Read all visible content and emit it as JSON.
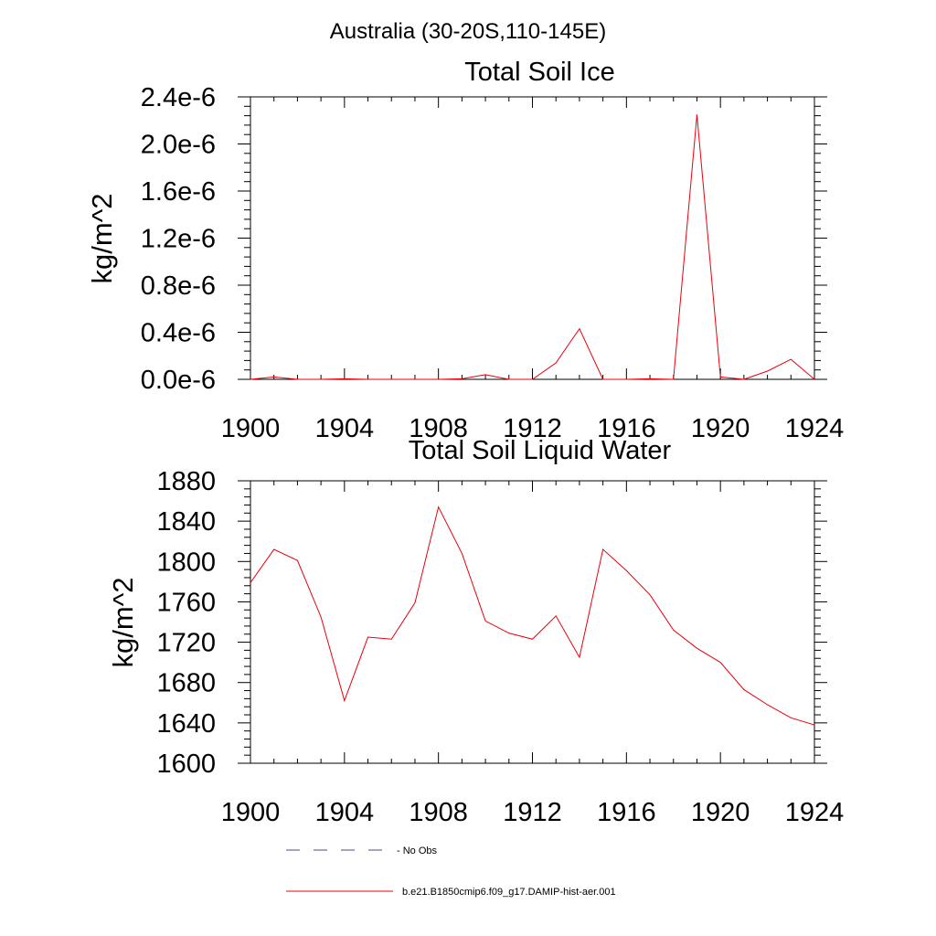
{
  "title": "Australia (30-20S,110-145E)",
  "legend": {
    "items": [
      {
        "label": "- No Obs",
        "color": "#4a4a8a",
        "style": "dashed"
      },
      {
        "label": "b.e21.B1850cmip6.f09_g17.DAMIP-hist-aer.001",
        "color": "#e8000b",
        "style": "solid"
      }
    ]
  },
  "chart_data": [
    {
      "type": "line",
      "title": "Total Soil Ice",
      "xlabel": "",
      "ylabel": "kg/m^2",
      "xlim": [
        1900,
        1924
      ],
      "ylim": [
        0,
        2.4
      ],
      "xticks": [
        1900,
        1904,
        1908,
        1912,
        1916,
        1920,
        1924
      ],
      "xtick_labels": [
        "1900",
        "1904",
        "1908",
        "1912",
        "1916",
        "1920",
        "1924"
      ],
      "yticks": [
        0,
        0.4,
        0.8,
        1.2,
        1.6,
        2.0,
        2.4
      ],
      "ytick_labels": [
        "0.0e-6",
        "0.4e-6",
        "0.8e-6",
        "1.2e-6",
        "1.6e-6",
        "2.0e-6",
        "2.4e-6"
      ],
      "x": [
        1900,
        1901,
        1902,
        1903,
        1904,
        1905,
        1906,
        1907,
        1908,
        1909,
        1910,
        1911,
        1912,
        1913,
        1914,
        1915,
        1916,
        1917,
        1918,
        1919,
        1920,
        1921,
        1922,
        1923,
        1924
      ],
      "series": [
        {
          "name": "b.e21.B1850cmip6.f09_g17.DAMIP-hist-aer.001",
          "color": "#e8000b",
          "values": [
            0.0,
            0.02,
            0.0,
            0.0,
            0.005,
            0.0,
            0.0,
            0.0,
            0.0,
            0.005,
            0.04,
            0.0,
            0.0,
            0.14,
            0.43,
            0.0,
            0.0,
            0.005,
            0.0,
            2.25,
            0.02,
            0.0,
            0.07,
            0.17,
            0.0
          ]
        }
      ]
    },
    {
      "type": "line",
      "title": "Total Soil Liquid Water",
      "xlabel": "",
      "ylabel": "kg/m^2",
      "xlim": [
        1900,
        1924
      ],
      "ylim": [
        1600,
        1880
      ],
      "xticks": [
        1900,
        1904,
        1908,
        1912,
        1916,
        1920,
        1924
      ],
      "xtick_labels": [
        "1900",
        "1904",
        "1908",
        "1912",
        "1916",
        "1920",
        "1924"
      ],
      "yticks": [
        1600,
        1640,
        1680,
        1720,
        1760,
        1800,
        1840,
        1880
      ],
      "ytick_labels": [
        "1600",
        "1640",
        "1680",
        "1720",
        "1760",
        "1800",
        "1840",
        "1880"
      ],
      "x": [
        1900,
        1901,
        1902,
        1903,
        1904,
        1905,
        1906,
        1907,
        1908,
        1909,
        1910,
        1911,
        1912,
        1913,
        1914,
        1915,
        1916,
        1917,
        1918,
        1919,
        1920,
        1921,
        1922,
        1923,
        1924
      ],
      "series": [
        {
          "name": "b.e21.B1850cmip6.f09_g17.DAMIP-hist-aer.001",
          "color": "#e8000b",
          "values": [
            1779,
            1812,
            1801,
            1745,
            1662,
            1725,
            1723,
            1759,
            1854,
            1808,
            1741,
            1729,
            1723,
            1746,
            1705,
            1812,
            1791,
            1767,
            1732,
            1714,
            1700,
            1673,
            1658,
            1645,
            1638
          ]
        }
      ]
    }
  ]
}
